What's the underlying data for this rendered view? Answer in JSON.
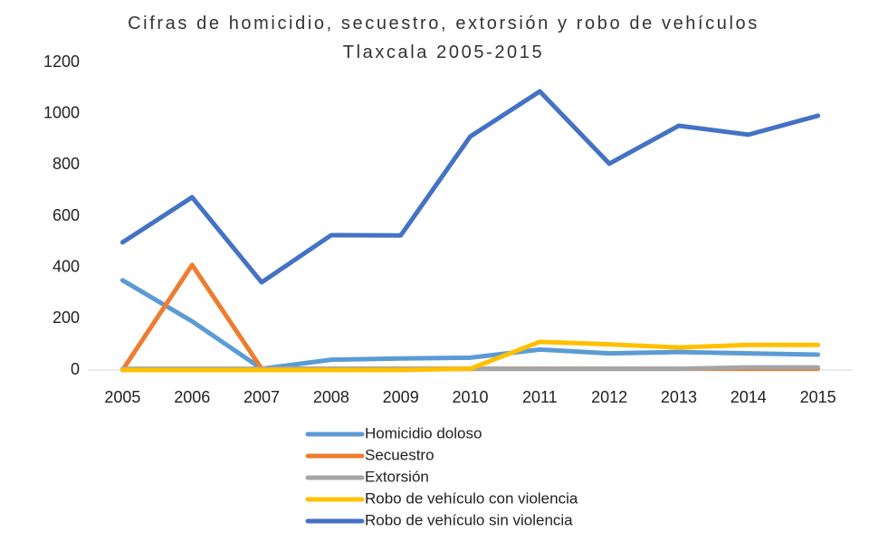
{
  "chart_data": {
    "type": "line",
    "title": "Cifras de homicidio, secuestro, extorsión y robo de vehículos Tlaxcala 2005-2015",
    "categories": [
      "2005",
      "2006",
      "2007",
      "2008",
      "2009",
      "2010",
      "2011",
      "2012",
      "2013",
      "2014",
      "2015"
    ],
    "series": [
      {
        "name": "Homicidio doloso",
        "color": "#5B9BD5",
        "values": [
          350,
          190,
          5,
          40,
          45,
          48,
          80,
          65,
          70,
          65,
          60
        ]
      },
      {
        "name": "Secuestro",
        "color": "#ED7D31",
        "values": [
          0,
          410,
          5,
          5,
          5,
          5,
          5,
          5,
          5,
          5,
          5
        ]
      },
      {
        "name": "Extorsión",
        "color": "#A5A5A5",
        "values": [
          5,
          5,
          5,
          5,
          5,
          5,
          5,
          5,
          5,
          10,
          10
        ]
      },
      {
        "name": "Robo de vehículo con violencia",
        "color": "#FFC000",
        "values": [
          0,
          0,
          0,
          0,
          0,
          5,
          110,
          100,
          88,
          98,
          98
        ]
      },
      {
        "name": "Robo de vehículo sin violencia",
        "color": "#4472C4",
        "values": [
          498,
          674,
          342,
          526,
          525,
          911,
          1087,
          805,
          953,
          918,
          992
        ]
      }
    ],
    "ylim": [
      0,
      1200
    ],
    "yticks": [
      0,
      200,
      400,
      600,
      800,
      1000,
      1200
    ],
    "legend": "bottom"
  }
}
